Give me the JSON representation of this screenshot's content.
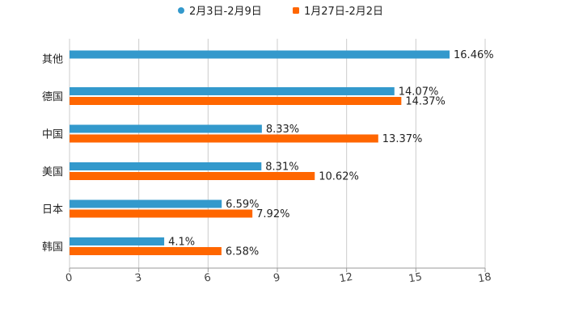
{
  "chart_data": {
    "type": "bar",
    "orientation": "horizontal",
    "title": "",
    "xlabel": "",
    "ylabel": "",
    "xlim": [
      0,
      18
    ],
    "x_ticks": [
      0,
      3,
      6,
      9,
      12,
      15,
      18
    ],
    "x_tick_labels": [
      "0",
      "3",
      "6",
      "9",
      "12",
      "15",
      "18"
    ],
    "grid": true,
    "legend_position": "top-center",
    "categories": [
      "其他",
      "德国",
      "中国",
      "美国",
      "日本",
      "韩国"
    ],
    "series": [
      {
        "name": "2月3日-2月9日",
        "color": "#3399CC",
        "values": [
          16.46,
          14.07,
          8.33,
          8.31,
          6.59,
          4.1
        ],
        "labels": [
          "16.46%",
          "14.07%",
          "8.33%",
          "8.31%",
          "6.59%",
          "4.1%"
        ]
      },
      {
        "name": "1月27日-2月2日",
        "color": "#FF6600",
        "values": [
          null,
          14.37,
          13.37,
          10.62,
          7.92,
          6.58
        ],
        "labels": [
          "",
          "14.37%",
          "13.37%",
          "10.62%",
          "7.92%",
          "6.58%"
        ]
      }
    ]
  }
}
